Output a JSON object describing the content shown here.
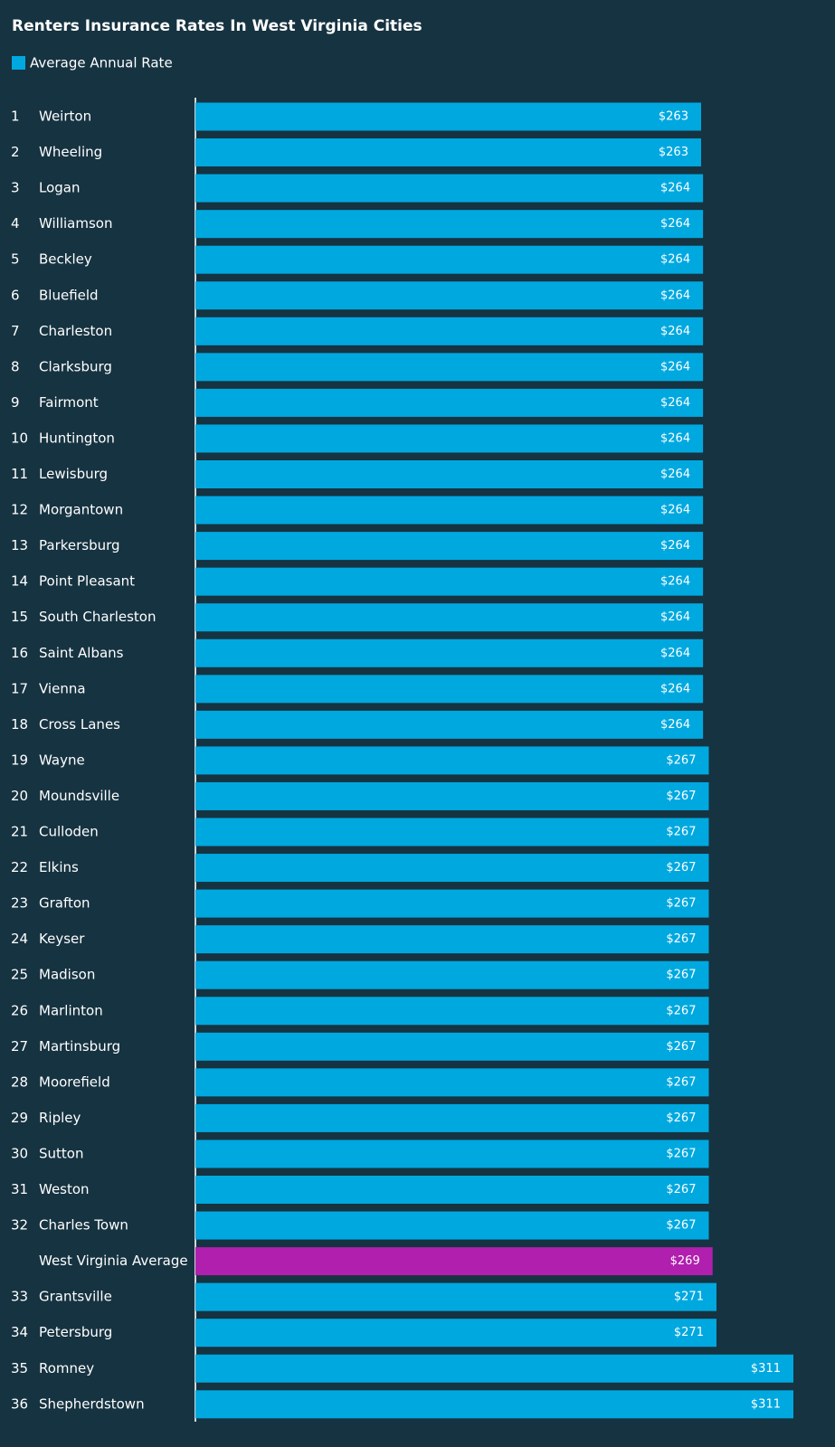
{
  "chart_data": {
    "type": "bar",
    "orientation": "horizontal",
    "title": "Renters Insurance Rates In West Virginia Cities",
    "categories": [
      "Weirton",
      "Wheeling",
      "Logan",
      "Williamson",
      "Beckley",
      "Bluefield",
      "Charleston",
      "Clarksburg",
      "Fairmont",
      "Huntington",
      "Lewisburg",
      "Morgantown",
      "Parkersburg",
      "Point Pleasant",
      "South Charleston",
      "Saint Albans",
      "Vienna",
      "Cross Lanes",
      "Wayne",
      "Moundsville",
      "Culloden",
      "Elkins",
      "Grafton",
      "Keyser",
      "Madison",
      "Marlinton",
      "Martinsburg",
      "Moorefield",
      "Ripley",
      "Sutton",
      "Weston",
      "Charles Town",
      "West Virginia Average",
      "Grantsville",
      "Petersburg",
      "Romney",
      "Shepherdstown"
    ],
    "ranks": [
      1,
      2,
      3,
      4,
      5,
      6,
      7,
      8,
      9,
      10,
      11,
      12,
      13,
      14,
      15,
      16,
      17,
      18,
      19,
      20,
      21,
      22,
      23,
      24,
      25,
      26,
      27,
      28,
      29,
      30,
      31,
      32,
      null,
      33,
      34,
      35,
      36
    ],
    "series": [
      {
        "name": "Average Annual Rate",
        "color": "#00a8e0",
        "values": [
          263,
          263,
          264,
          264,
          264,
          264,
          264,
          264,
          264,
          264,
          264,
          264,
          264,
          264,
          264,
          264,
          264,
          264,
          267,
          267,
          267,
          267,
          267,
          267,
          267,
          267,
          267,
          267,
          267,
          267,
          267,
          267,
          269,
          271,
          271,
          311,
          311
        ],
        "value_labels": [
          "$263",
          "$263",
          "$264",
          "$264",
          "$264",
          "$264",
          "$264",
          "$264",
          "$264",
          "$264",
          "$264",
          "$264",
          "$264",
          "$264",
          "$264",
          "$264",
          "$264",
          "$264",
          "$267",
          "$267",
          "$267",
          "$267",
          "$267",
          "$267",
          "$267",
          "$267",
          "$267",
          "$267",
          "$267",
          "$267",
          "$267",
          "$267",
          "$269",
          "$271",
          "$271",
          "$311",
          "$311"
        ],
        "colors": [
          "#00a8e0",
          "#00a8e0",
          "#00a8e0",
          "#00a8e0",
          "#00a8e0",
          "#00a8e0",
          "#00a8e0",
          "#00a8e0",
          "#00a8e0",
          "#00a8e0",
          "#00a8e0",
          "#00a8e0",
          "#00a8e0",
          "#00a8e0",
          "#00a8e0",
          "#00a8e0",
          "#00a8e0",
          "#00a8e0",
          "#00a8e0",
          "#00a8e0",
          "#00a8e0",
          "#00a8e0",
          "#00a8e0",
          "#00a8e0",
          "#00a8e0",
          "#00a8e0",
          "#00a8e0",
          "#00a8e0",
          "#00a8e0",
          "#00a8e0",
          "#00a8e0",
          "#00a8e0",
          "#b01fae",
          "#00a8e0",
          "#00a8e0",
          "#00a8e0",
          "#00a8e0"
        ]
      }
    ]
  }
}
